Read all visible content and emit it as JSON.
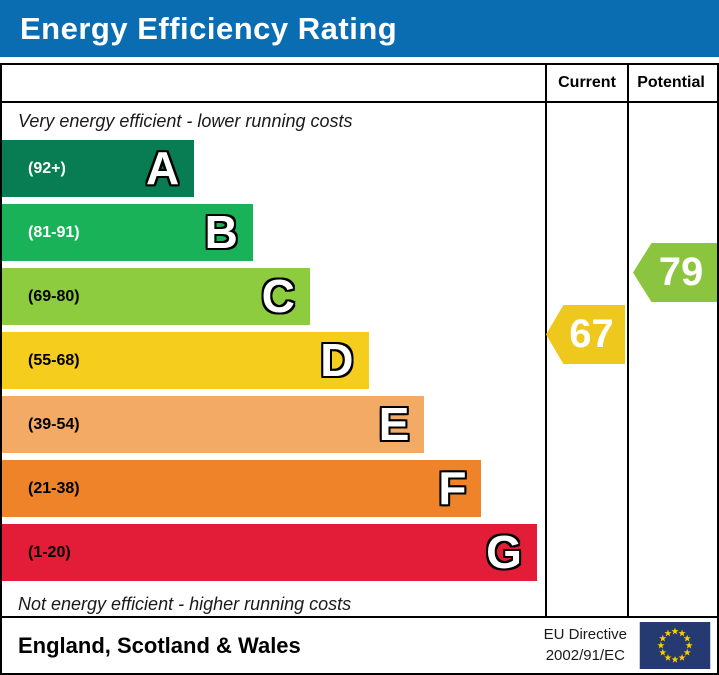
{
  "title": "Energy Efficiency Rating",
  "columns": {
    "current": "Current",
    "potential": "Potential"
  },
  "captions": {
    "top": "Very energy efficient - lower running costs",
    "bottom": "Not energy efficient - higher running costs"
  },
  "bands": [
    {
      "letter": "A",
      "range": "(92+)",
      "color": "#087c52",
      "label_color": "#ffffff",
      "width_pct": 35.4
    },
    {
      "letter": "B",
      "range": "(81-91)",
      "color": "#1ab259",
      "label_color": "#ffffff",
      "width_pct": 46.2
    },
    {
      "letter": "C",
      "range": "(69-80)",
      "color": "#8dcc3f",
      "label_color": "#000000",
      "width_pct": 56.7
    },
    {
      "letter": "D",
      "range": "(55-68)",
      "color": "#f5cd1c",
      "label_color": "#000000",
      "width_pct": 67.5
    },
    {
      "letter": "E",
      "range": "(39-54)",
      "color": "#f2aa65",
      "label_color": "#000000",
      "width_pct": 77.8
    },
    {
      "letter": "F",
      "range": "(21-38)",
      "color": "#ee8329",
      "label_color": "#000000",
      "width_pct": 88.3
    },
    {
      "letter": "G",
      "range": "(1-20)",
      "color": "#e31c38",
      "label_color": "#000000",
      "width_pct": 98.5
    }
  ],
  "ratings": {
    "current": {
      "value": "67",
      "color": "#eec81d"
    },
    "potential": {
      "value": "79",
      "color": "#8bc53f"
    }
  },
  "footer": {
    "region": "England, Scotland & Wales",
    "directive_line1": "EU Directive",
    "directive_line2": "2002/91/EC",
    "eu_flag_icon": "eu-flag",
    "eu_flag_field_color": "#253a70",
    "eu_flag_star_color": "#ffcc00"
  },
  "theme": {
    "header_blue": "#0a6db2",
    "border_color": "#000000"
  },
  "chart_data": {
    "type": "bar",
    "title": "Energy Efficiency Rating",
    "categories": [
      "A",
      "B",
      "C",
      "D",
      "E",
      "F",
      "G"
    ],
    "band_ranges": [
      "92+",
      "81-91",
      "69-80",
      "55-68",
      "39-54",
      "21-38",
      "1-20"
    ],
    "band_colors": [
      "#087c52",
      "#1ab259",
      "#8dcc3f",
      "#f5cd1c",
      "#f2aa65",
      "#ee8329",
      "#e31c38"
    ],
    "bar_lengths_fraction_of_axis": [
      0.354,
      0.462,
      0.567,
      0.675,
      0.778,
      0.883,
      0.985
    ],
    "series": [
      {
        "name": "Current",
        "values": [
          67
        ],
        "band": "D",
        "marker_color": "#eec81d"
      },
      {
        "name": "Potential",
        "values": [
          79
        ],
        "band": "C",
        "marker_color": "#8bc53f"
      }
    ],
    "value_range": [
      1,
      100
    ],
    "annotations": [
      "Very energy efficient - lower running costs",
      "Not energy efficient - higher running costs"
    ],
    "legend_position": "none",
    "grid": false,
    "region_label": "England, Scotland & Wales",
    "directive_label": "EU Directive 2002/91/EC"
  }
}
